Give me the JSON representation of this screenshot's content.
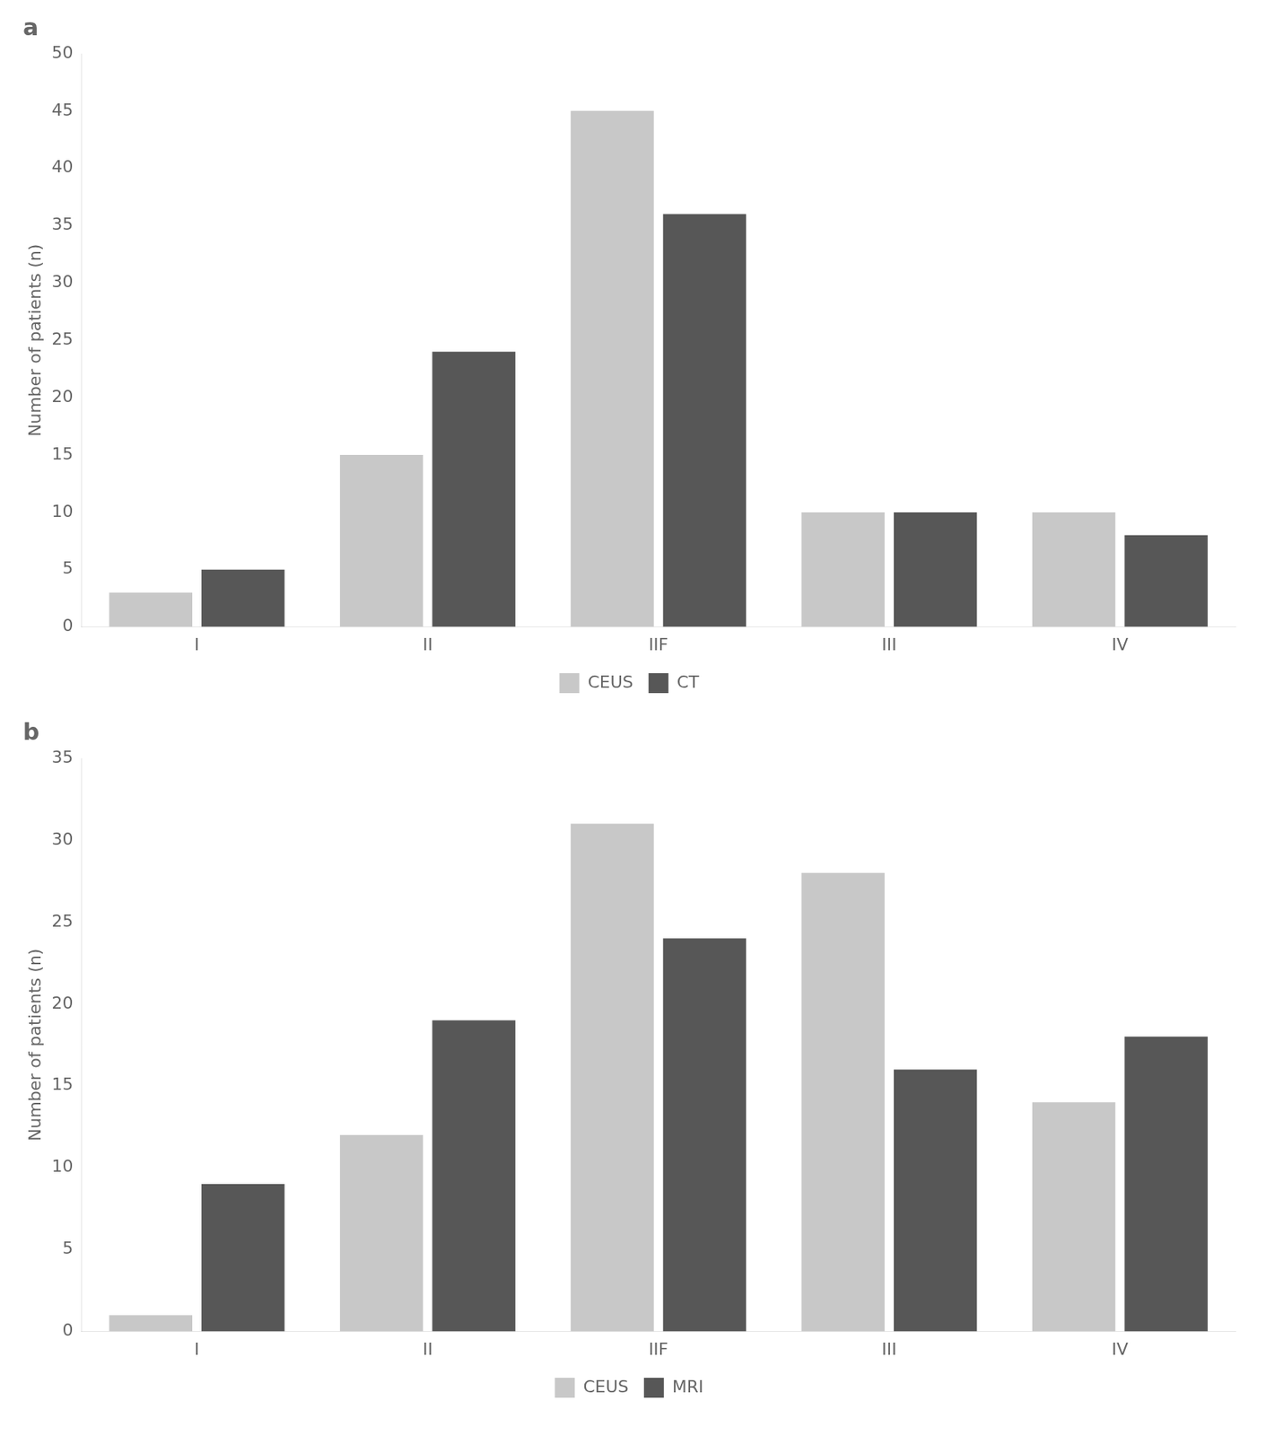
{
  "chart_data": [
    {
      "type": "bar",
      "title": "a",
      "ylabel": "Number of patients (n)",
      "categories": [
        "I",
        "II",
        "IIF",
        "III",
        "IV"
      ],
      "series": [
        {
          "name": "CEUS",
          "color": "#c8c8c8",
          "values": [
            3,
            15,
            45,
            10,
            10
          ]
        },
        {
          "name": "CT",
          "color": "#575757",
          "values": [
            5,
            24,
            36,
            10,
            8
          ]
        }
      ],
      "ylim": [
        0,
        50
      ],
      "yticks": [
        0,
        5,
        10,
        15,
        20,
        25,
        30,
        35,
        40,
        45,
        50
      ],
      "grid": false,
      "legend": "bottom"
    },
    {
      "type": "bar",
      "title": "b",
      "ylabel": "Number of patients (n)",
      "categories": [
        "I",
        "II",
        "IIF",
        "III",
        "IV"
      ],
      "series": [
        {
          "name": "CEUS",
          "color": "#c8c8c8",
          "values": [
            1,
            12,
            31,
            28,
            14
          ]
        },
        {
          "name": "MRI",
          "color": "#575757",
          "values": [
            9,
            19,
            24,
            16,
            18
          ]
        }
      ],
      "ylim": [
        0,
        35
      ],
      "yticks": [
        0,
        5,
        10,
        15,
        20,
        25,
        30,
        35
      ],
      "grid": false,
      "legend": "bottom"
    }
  ]
}
